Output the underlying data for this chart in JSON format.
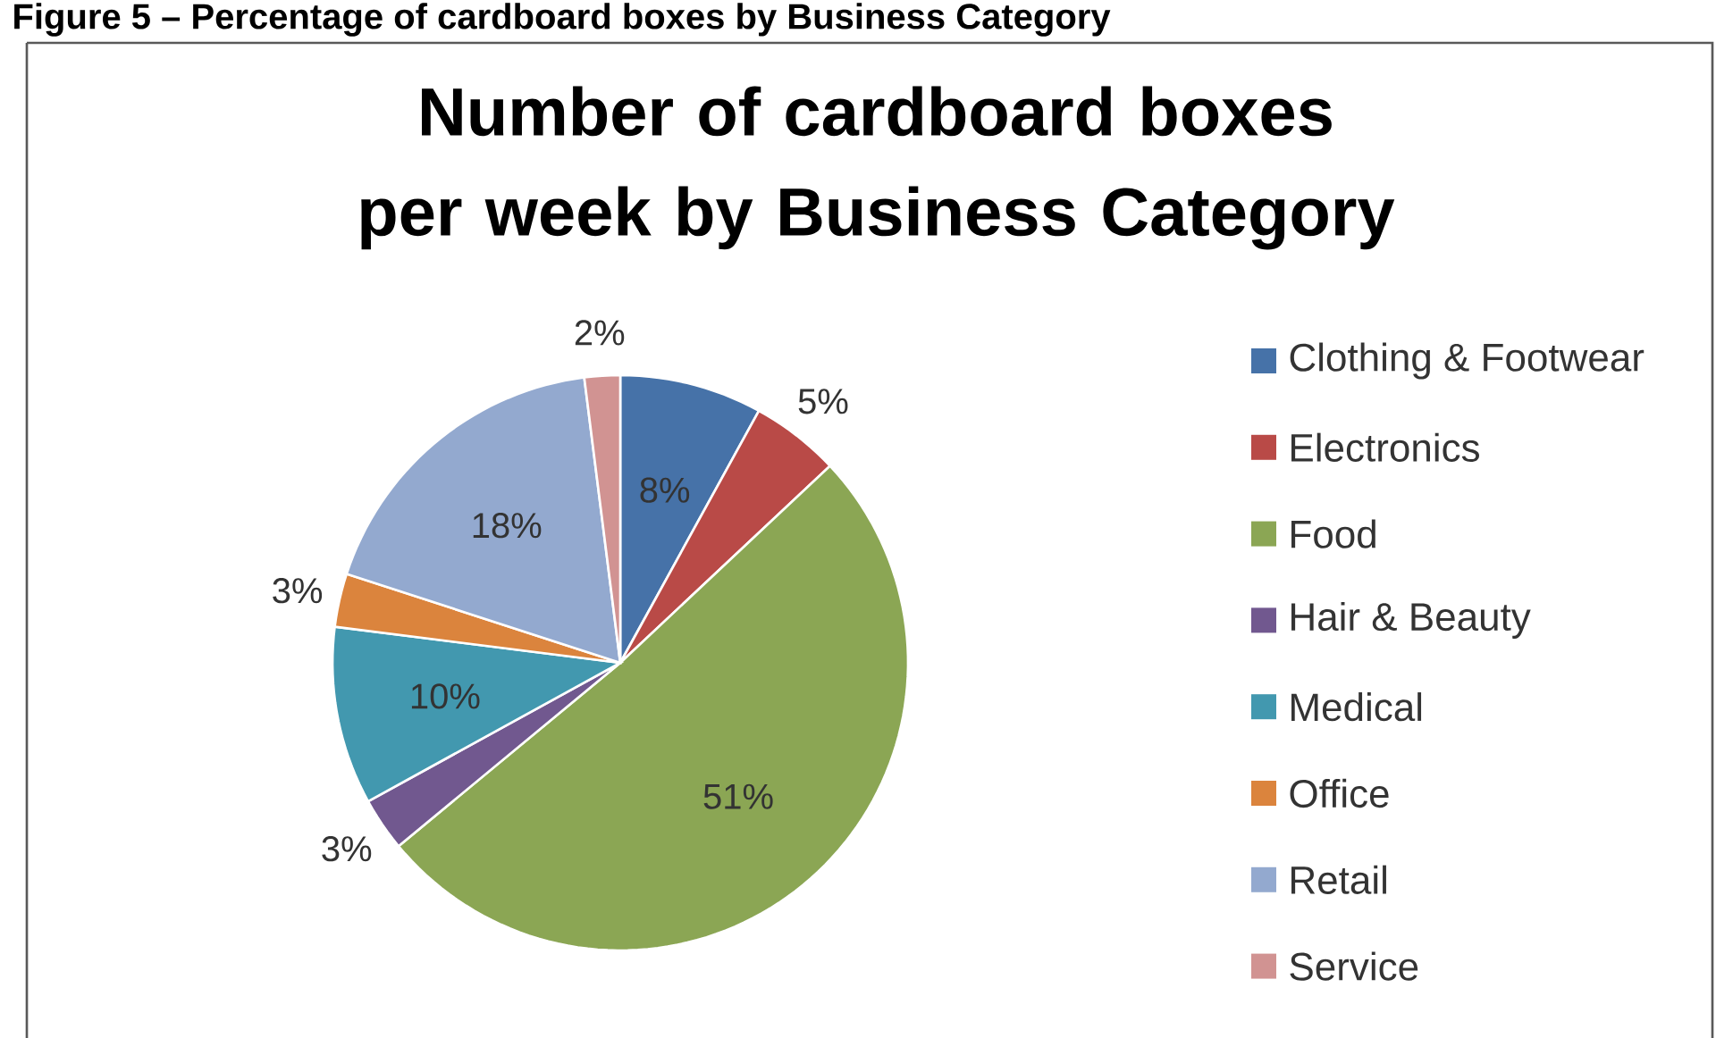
{
  "chart_data": {
    "type": "pie",
    "title": "Number of cardboard boxes per week by Business Category",
    "annotations": [
      "Figure 5 – Percentage of cardboard boxes by Business Category"
    ],
    "categories": [
      "Clothing & Footwear",
      "Electronics",
      "Food",
      "Hair & Beauty",
      "Medical",
      "Office",
      "Retail",
      "Service"
    ],
    "values": [
      8,
      5,
      51,
      3,
      10,
      3,
      18,
      2
    ],
    "value_labels": [
      "8%",
      "5%",
      "51%",
      "3%",
      "10%",
      "3%",
      "18%",
      "2%"
    ],
    "colors": [
      "#4672a8",
      "#b94a47",
      "#8ba654",
      "#71588f",
      "#4298af",
      "#db843d",
      "#93a9cf",
      "#d19392"
    ],
    "legend": "right"
  }
}
